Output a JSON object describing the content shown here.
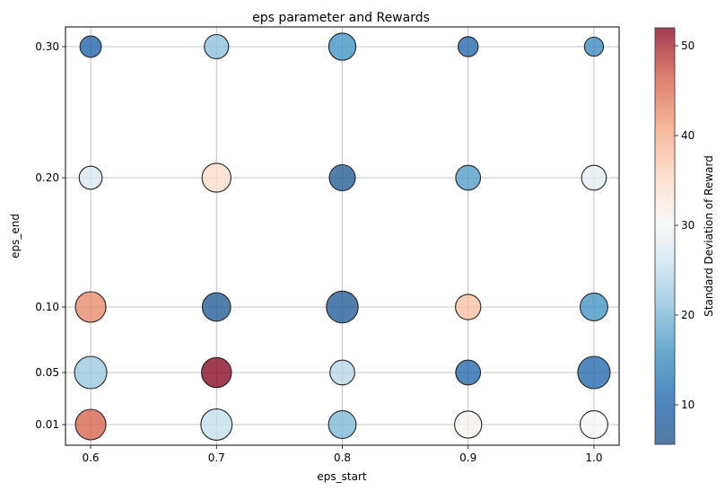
{
  "chart_data": {
    "type": "scatter",
    "title": "eps parameter and Rewards",
    "xlabel": "eps_start",
    "ylabel": "eps_end",
    "x_ticks": [
      0.6,
      0.7,
      0.8,
      0.9,
      1.0
    ],
    "x_tick_labels": [
      "0.6",
      "0.7",
      "0.8",
      "0.9",
      "1.0"
    ],
    "y_ticks": [
      0.01,
      0.05,
      0.1,
      0.2,
      0.3
    ],
    "y_tick_labels": [
      "0.01",
      "0.05",
      "0.10",
      "0.20",
      "0.30"
    ],
    "xlim": [
      0.58,
      1.02
    ],
    "y_scale": "categorical-nonlinear",
    "grid": true,
    "colorbar": {
      "label": "Standard Deviation of Reward",
      "range": [
        5.6,
        52
      ],
      "ticks": [
        10,
        20,
        30,
        40,
        50
      ],
      "tick_labels": [
        "10",
        "20",
        "30",
        "40",
        "50"
      ],
      "colormap": "RdBu_r"
    },
    "points": [
      {
        "x": 0.6,
        "y": 0.3,
        "size": 0.45,
        "std": 10
      },
      {
        "x": 0.7,
        "y": 0.3,
        "size": 0.58,
        "std": 21
      },
      {
        "x": 0.8,
        "y": 0.3,
        "size": 0.7,
        "std": 16
      },
      {
        "x": 0.9,
        "y": 0.3,
        "size": 0.4,
        "std": 11
      },
      {
        "x": 1.0,
        "y": 0.3,
        "size": 0.35,
        "std": 15
      },
      {
        "x": 0.6,
        "y": 0.2,
        "size": 0.52,
        "std": 27
      },
      {
        "x": 0.7,
        "y": 0.2,
        "size": 0.78,
        "std": 35
      },
      {
        "x": 0.8,
        "y": 0.2,
        "size": 0.65,
        "std": 7
      },
      {
        "x": 0.9,
        "y": 0.2,
        "size": 0.6,
        "std": 17
      },
      {
        "x": 1.0,
        "y": 0.2,
        "size": 0.6,
        "std": 28
      },
      {
        "x": 0.6,
        "y": 0.1,
        "size": 0.85,
        "std": 43
      },
      {
        "x": 0.7,
        "y": 0.1,
        "size": 0.75,
        "std": 7
      },
      {
        "x": 0.8,
        "y": 0.1,
        "size": 0.9,
        "std": 7
      },
      {
        "x": 0.9,
        "y": 0.1,
        "size": 0.62,
        "std": 38
      },
      {
        "x": 1.0,
        "y": 0.1,
        "size": 0.72,
        "std": 16
      },
      {
        "x": 0.6,
        "y": 0.05,
        "size": 0.92,
        "std": 22
      },
      {
        "x": 0.7,
        "y": 0.05,
        "size": 0.82,
        "std": 52
      },
      {
        "x": 0.8,
        "y": 0.05,
        "size": 0.6,
        "std": 24
      },
      {
        "x": 0.9,
        "y": 0.05,
        "size": 0.6,
        "std": 11
      },
      {
        "x": 1.0,
        "y": 0.05,
        "size": 0.92,
        "std": 11
      },
      {
        "x": 0.6,
        "y": 0.01,
        "size": 0.85,
        "std": 46
      },
      {
        "x": 0.7,
        "y": 0.01,
        "size": 0.88,
        "std": 25
      },
      {
        "x": 0.8,
        "y": 0.01,
        "size": 0.72,
        "std": 20
      },
      {
        "x": 0.9,
        "y": 0.01,
        "size": 0.7,
        "std": 31
      },
      {
        "x": 1.0,
        "y": 0.01,
        "size": 0.72,
        "std": 30
      }
    ]
  }
}
